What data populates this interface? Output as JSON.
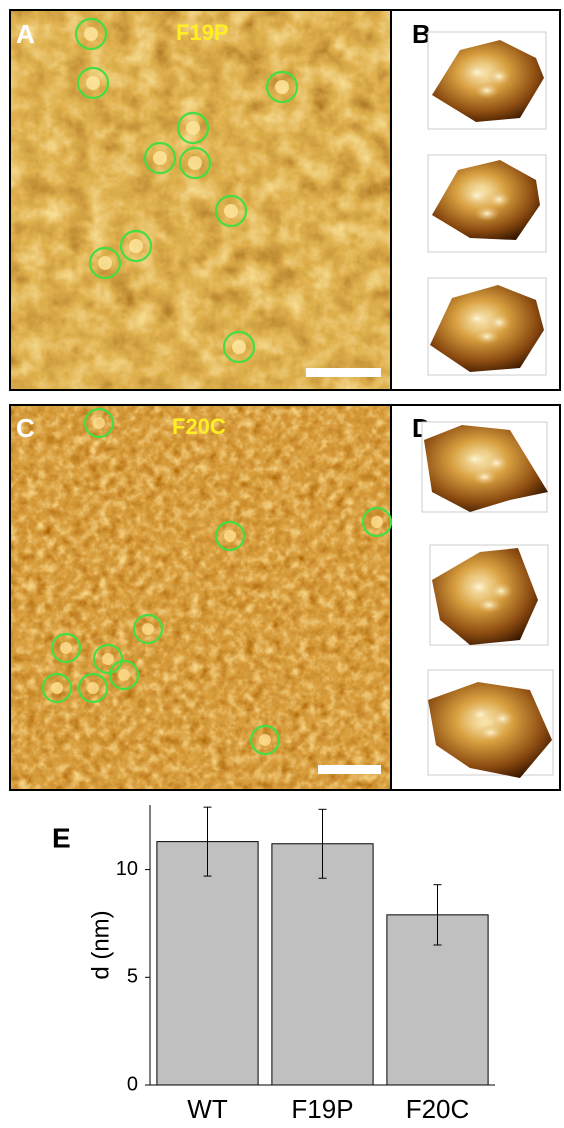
{
  "panels": [
    {
      "label": "A",
      "title": "F19P"
    },
    {
      "label": "B"
    },
    {
      "label": "C",
      "title": "F20C"
    },
    {
      "label": "D"
    }
  ],
  "chart_data": {
    "type": "bar",
    "label": "E",
    "y_label": "d (nm)",
    "categories": [
      "WT",
      "F19P",
      "F20C"
    ],
    "values": [
      11.3,
      11.2,
      7.9
    ],
    "errors": [
      1.6,
      1.6,
      1.4
    ],
    "color": "#c0c0c0",
    "ylim": [
      0,
      13
    ],
    "yticks": [
      0,
      5,
      10
    ],
    "grid": false
  }
}
